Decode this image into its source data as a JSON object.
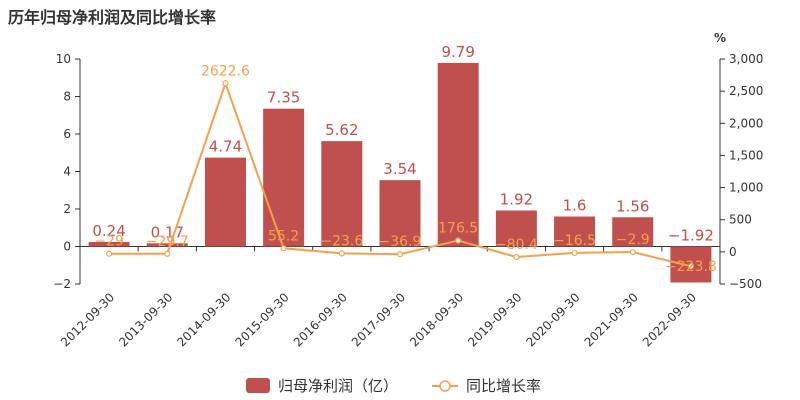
{
  "chart_data": {
    "type": "bar",
    "title": "历年归母净利润及同比增长率",
    "categories": [
      "2012-09-30",
      "2013-09-30",
      "2014-09-30",
      "2015-09-30",
      "2016-09-30",
      "2017-09-30",
      "2018-09-30",
      "2019-09-30",
      "2020-09-30",
      "2021-09-30",
      "2022-09-30"
    ],
    "series": [
      {
        "name": "归母净利润（亿）",
        "type": "bar",
        "axis": "left",
        "color": "#c0504d",
        "values": [
          0.24,
          0.17,
          4.74,
          7.35,
          5.62,
          3.54,
          9.79,
          1.92,
          1.6,
          1.56,
          -1.92
        ],
        "labels": [
          "0.24",
          "0.17",
          "4.74",
          "7.35",
          "5.62",
          "3.54",
          "9.79",
          "1.92",
          "1.6",
          "1.56",
          "−1.92"
        ]
      },
      {
        "name": "同比增长率",
        "type": "line",
        "axis": "right",
        "color": "#f5a04b",
        "values": [
          -29,
          -29.7,
          2622.6,
          55.2,
          -23.6,
          -36.9,
          176.5,
          -80.4,
          -16.5,
          -2.9,
          -223.8
        ],
        "labels": [
          "−29",
          "−29.7",
          "2622.6",
          "55.2",
          "−23.6",
          "−36.9",
          "176.5",
          "−80.4",
          "−16.5",
          "−2.9",
          "−223.8"
        ]
      }
    ],
    "y_left": {
      "ylim": [
        -2,
        10
      ],
      "ticks": [
        -2,
        0,
        2,
        4,
        6,
        8,
        10
      ],
      "tick_labels": [
        "−2",
        "0",
        "2",
        "4",
        "6",
        "8",
        "10"
      ]
    },
    "y_right": {
      "unit": "%",
      "ylim": [
        -500,
        3000
      ],
      "ticks": [
        -500,
        0,
        500,
        1000,
        1500,
        2000,
        2500,
        3000
      ],
      "tick_labels": [
        "−500",
        "0",
        "500",
        "1,000",
        "1,500",
        "2,000",
        "2,500",
        "3,000"
      ]
    },
    "grid": false,
    "legend": "bottom-center"
  }
}
